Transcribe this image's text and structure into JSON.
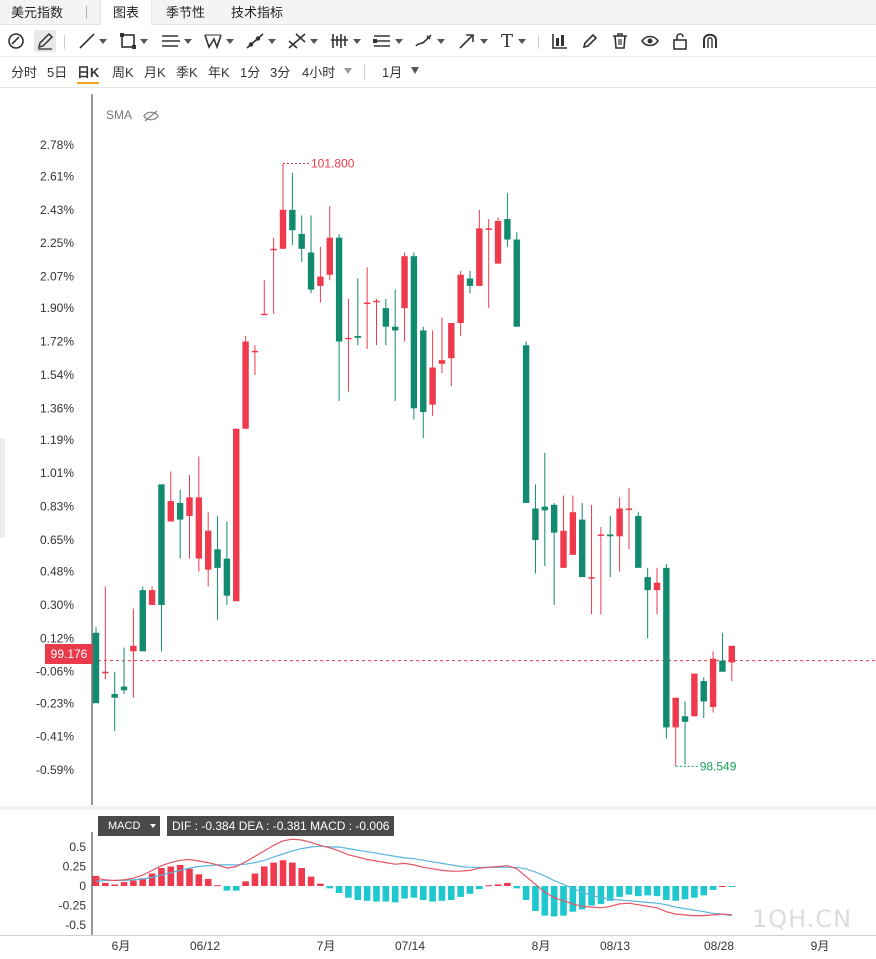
{
  "tabs": {
    "title": "美元指数",
    "items": [
      {
        "label": "图表",
        "active": true
      },
      {
        "label": "季节性",
        "active": false
      },
      {
        "label": "技术指标",
        "active": false
      }
    ]
  },
  "toolbar": {
    "icons": [
      "cursor-icon",
      "pencil-icon",
      "trendline-icon",
      "rectangle-icon",
      "parallel-lines-icon",
      "pattern-icon",
      "ray-icon",
      "fork-icon",
      "fib-bars-icon",
      "channel-icon",
      "brush-icon",
      "arrow-icon",
      "text-icon",
      "indicator-icon",
      "edit-icon",
      "trash-icon",
      "eye-icon",
      "lock-icon",
      "magnet-icon"
    ],
    "text_tool_glyph": "T"
  },
  "periods": {
    "items": [
      "分时",
      "5日",
      "日K",
      "周K",
      "月K",
      "季K",
      "年K",
      "1分",
      "3分",
      "4小时"
    ],
    "active": "日K",
    "range": "1月"
  },
  "indicator_label": "SMA",
  "current_price": "99.176",
  "macd_panel": {
    "selector": "MACD",
    "values_text": "DIF : -0.384  DEA : -0.381  MACD : -0.006"
  },
  "watermark": "1QH.CN",
  "colors": {
    "up": "#ee3a4c",
    "down": "#128a6e",
    "dif_line": "#e05566",
    "dea_line": "#5ab4e0",
    "macd_up": "#ee3a4c",
    "macd_down": "#1fc7cf"
  },
  "chart_data": [
    {
      "type": "candlestick",
      "title": "美元指数",
      "ylabel": "",
      "y_ticks": [
        "2.78%",
        "2.61%",
        "2.43%",
        "2.25%",
        "2.07%",
        "1.90%",
        "1.72%",
        "1.54%",
        "1.36%",
        "1.19%",
        "1.01%",
        "0.83%",
        "0.65%",
        "0.48%",
        "0.30%",
        "0.12%",
        "-0.06%",
        "-0.23%",
        "-0.41%",
        "-0.59%"
      ],
      "y_range_pct": [
        -0.7,
        2.88
      ],
      "base_price": 99.176,
      "x_ticks": [
        "6月",
        "06/12",
        "7月",
        "07/14",
        "8月",
        "08/13",
        "08/28",
        "9月"
      ],
      "annotations": [
        {
          "text": "101.800",
          "type": "high"
        },
        {
          "text": "98.549",
          "type": "low"
        }
      ],
      "candles_pct": [
        [
          0.15,
          -0.05,
          0.18,
          -0.23
        ],
        [
          -0.06,
          0.4,
          -0.1,
          -0.06
        ],
        [
          -0.18,
          -0.06,
          -0.38,
          -0.2
        ],
        [
          -0.14,
          0.07,
          -0.18,
          -0.16
        ],
        [
          0.05,
          0.28,
          -0.2,
          0.08
        ],
        [
          0.38,
          0.4,
          0.06,
          0.05
        ],
        [
          0.3,
          0.4,
          0.3,
          0.38
        ],
        [
          0.95,
          0.95,
          0.05,
          0.3
        ],
        [
          0.75,
          1.02,
          0.75,
          0.86
        ],
        [
          0.85,
          0.92,
          0.55,
          0.76
        ],
        [
          0.78,
          1.0,
          0.55,
          0.88
        ],
        [
          0.55,
          1.1,
          0.48,
          0.88
        ],
        [
          0.49,
          0.8,
          0.4,
          0.7
        ],
        [
          0.6,
          0.78,
          0.22,
          0.5
        ],
        [
          0.55,
          0.75,
          0.3,
          0.35
        ],
        [
          0.32,
          1.25,
          0.32,
          1.25
        ],
        [
          1.25,
          1.75,
          1.25,
          1.72
        ],
        [
          1.67,
          1.7,
          1.54,
          1.67
        ],
        [
          1.87,
          2.05,
          1.87,
          1.87
        ],
        [
          2.22,
          2.28,
          1.87,
          2.22
        ],
        [
          2.22,
          2.68,
          2.22,
          2.43
        ],
        [
          2.43,
          2.63,
          2.24,
          2.32
        ],
        [
          2.3,
          2.4,
          2.15,
          2.22
        ],
        [
          2.2,
          2.4,
          1.98,
          2.0
        ],
        [
          2.02,
          2.23,
          1.93,
          2.07
        ],
        [
          2.08,
          2.45,
          2.05,
          2.28
        ],
        [
          2.28,
          2.3,
          1.4,
          1.72
        ],
        [
          1.74,
          1.95,
          1.45,
          1.74
        ],
        [
          1.75,
          2.06,
          1.7,
          1.74
        ],
        [
          1.93,
          2.12,
          1.68,
          1.93
        ],
        [
          1.94,
          1.95,
          1.7,
          1.94
        ],
        [
          1.9,
          1.95,
          1.7,
          1.8
        ],
        [
          1.8,
          2.0,
          1.4,
          1.78
        ],
        [
          1.9,
          2.2,
          1.72,
          2.18
        ],
        [
          2.18,
          2.2,
          1.3,
          1.36
        ],
        [
          1.78,
          1.8,
          1.2,
          1.34
        ],
        [
          1.38,
          1.78,
          1.32,
          1.58
        ],
        [
          1.6,
          1.85,
          1.55,
          1.62
        ],
        [
          1.63,
          1.82,
          1.48,
          1.82
        ],
        [
          1.82,
          2.1,
          1.75,
          2.08
        ],
        [
          2.06,
          2.1,
          1.98,
          2.02
        ],
        [
          2.02,
          2.43,
          2.02,
          2.33
        ],
        [
          2.33,
          2.38,
          1.9,
          2.33
        ],
        [
          2.14,
          2.39,
          2.14,
          2.37
        ],
        [
          2.38,
          2.52,
          2.23,
          2.27
        ],
        [
          2.27,
          2.31,
          1.8,
          1.8
        ],
        [
          1.7,
          1.72,
          0.85,
          0.85
        ],
        [
          0.82,
          0.95,
          0.47,
          0.65
        ],
        [
          0.83,
          1.12,
          0.51,
          0.81
        ],
        [
          0.84,
          0.85,
          0.3,
          0.69
        ],
        [
          0.5,
          0.89,
          0.5,
          0.7
        ],
        [
          0.57,
          0.89,
          0.57,
          0.8
        ],
        [
          0.76,
          0.85,
          0.48,
          0.45
        ],
        [
          0.45,
          0.84,
          0.25,
          0.45
        ],
        [
          0.68,
          0.72,
          0.25,
          0.68
        ],
        [
          0.68,
          0.78,
          0.45,
          0.67
        ],
        [
          0.67,
          0.88,
          0.48,
          0.82
        ],
        [
          0.82,
          0.93,
          0.6,
          0.82
        ],
        [
          0.78,
          0.8,
          0.6,
          0.5
        ],
        [
          0.45,
          0.5,
          0.12,
          0.38
        ],
        [
          0.38,
          0.5,
          0.25,
          0.42
        ],
        [
          0.5,
          0.52,
          -0.42,
          -0.36
        ],
        [
          -0.36,
          -0.23,
          -0.57,
          -0.2
        ],
        [
          -0.3,
          -0.22,
          -0.56,
          -0.33
        ],
        [
          -0.3,
          -0.1,
          -0.3,
          -0.07
        ],
        [
          -0.11,
          -0.09,
          -0.31,
          -0.22
        ],
        [
          -0.25,
          0.05,
          -0.28,
          0.01
        ],
        [
          0.0,
          0.15,
          -0.06,
          -0.06
        ],
        [
          -0.01,
          0.01,
          -0.11,
          0.08
        ]
      ]
    },
    {
      "type": "line",
      "title": "MACD",
      "y_ticks": [
        "0.5",
        "0.25",
        "0",
        "-0.25",
        "-0.5"
      ],
      "series": [
        {
          "name": "DIF",
          "values": [
            0.1,
            0.08,
            0.07,
            0.08,
            0.1,
            0.14,
            0.2,
            0.26,
            0.3,
            0.33,
            0.34,
            0.32,
            0.3,
            0.27,
            0.23,
            0.25,
            0.31,
            0.38,
            0.45,
            0.52,
            0.58,
            0.6,
            0.59,
            0.56,
            0.52,
            0.49,
            0.45,
            0.4,
            0.37,
            0.34,
            0.32,
            0.3,
            0.28,
            0.29,
            0.27,
            0.24,
            0.22,
            0.2,
            0.19,
            0.19,
            0.2,
            0.23,
            0.24,
            0.25,
            0.26,
            0.22,
            0.12,
            0.02,
            -0.08,
            -0.15,
            -0.19,
            -0.23,
            -0.26,
            -0.27,
            -0.28,
            -0.26,
            -0.23,
            -0.22,
            -0.24,
            -0.26,
            -0.28,
            -0.33,
            -0.36,
            -0.37,
            -0.38,
            -0.38,
            -0.37,
            -0.36,
            -0.37
          ]
        },
        {
          "name": "DEA",
          "values": [
            0.06,
            0.07,
            0.07,
            0.07,
            0.08,
            0.09,
            0.11,
            0.14,
            0.17,
            0.2,
            0.23,
            0.25,
            0.26,
            0.27,
            0.27,
            0.27,
            0.28,
            0.3,
            0.33,
            0.37,
            0.41,
            0.45,
            0.48,
            0.5,
            0.51,
            0.5,
            0.5,
            0.48,
            0.46,
            0.44,
            0.42,
            0.4,
            0.38,
            0.36,
            0.35,
            0.33,
            0.31,
            0.29,
            0.27,
            0.25,
            0.24,
            0.24,
            0.24,
            0.24,
            0.24,
            0.24,
            0.22,
            0.18,
            0.13,
            0.07,
            0.02,
            -0.03,
            -0.08,
            -0.12,
            -0.15,
            -0.17,
            -0.18,
            -0.19,
            -0.2,
            -0.21,
            -0.22,
            -0.24,
            -0.27,
            -0.29,
            -0.31,
            -0.33,
            -0.35,
            -0.36,
            -0.38
          ]
        },
        {
          "name": "MACD",
          "values": [
            0.13,
            0.04,
            0.02,
            0.05,
            0.07,
            0.1,
            0.16,
            0.23,
            0.25,
            0.27,
            0.22,
            0.15,
            0.09,
            0.01,
            -0.06,
            -0.06,
            0.06,
            0.16,
            0.25,
            0.3,
            0.33,
            0.3,
            0.23,
            0.12,
            0.03,
            -0.03,
            -0.09,
            -0.15,
            -0.18,
            -0.19,
            -0.2,
            -0.2,
            -0.21,
            -0.16,
            -0.15,
            -0.18,
            -0.2,
            -0.19,
            -0.18,
            -0.14,
            -0.1,
            -0.04,
            0.01,
            0.02,
            0.04,
            -0.03,
            -0.18,
            -0.32,
            -0.38,
            -0.39,
            -0.38,
            -0.33,
            -0.3,
            -0.25,
            -0.23,
            -0.19,
            -0.14,
            -0.11,
            -0.13,
            -0.12,
            -0.13,
            -0.18,
            -0.19,
            -0.17,
            -0.15,
            -0.12,
            -0.05,
            0.0,
            -0.01
          ]
        }
      ]
    }
  ]
}
